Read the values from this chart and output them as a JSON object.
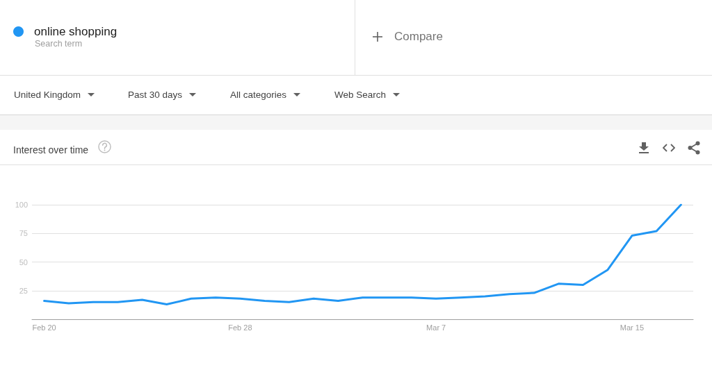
{
  "chart_data": {
    "type": "line",
    "title": "Interest over time",
    "annotations": [
      "Search term",
      "Compare",
      "United Kingdom",
      "Past 30 days",
      "All categories",
      "Web Search"
    ],
    "categories": [
      "Feb 20",
      null,
      null,
      null,
      null,
      null,
      null,
      null,
      "Feb 28",
      null,
      null,
      null,
      null,
      null,
      null,
      null,
      "Mar 7",
      null,
      null,
      null,
      null,
      null,
      null,
      null,
      "Mar 15",
      null,
      null
    ],
    "series": [
      {
        "name": "online shopping",
        "color": "#2196f3",
        "values": [
          16,
          14,
          15,
          15,
          17,
          13,
          18,
          19,
          18,
          16,
          15,
          18,
          16,
          19,
          19,
          19,
          18,
          19,
          20,
          22,
          23,
          31,
          30,
          43,
          73,
          77,
          100
        ]
      }
    ],
    "ylim": [
      0,
      100
    ],
    "yticks": [
      25,
      50,
      75,
      100
    ],
    "grid": "y",
    "legend": "top left",
    "marker": "none",
    "line_style": "solid"
  }
}
